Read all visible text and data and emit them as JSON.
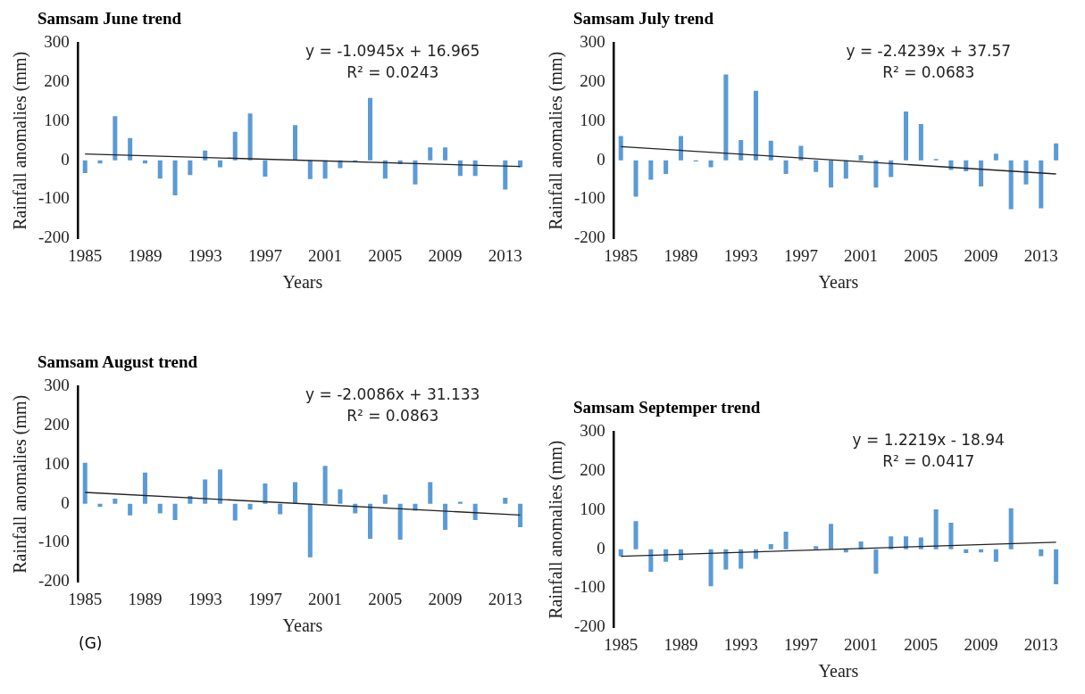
{
  "chart_data": [
    {
      "type": "bar",
      "title": "Samsam June trend",
      "xlabel": "Years",
      "ylabel": "Rainfall anomalies (mm)",
      "categories": [
        "1985",
        null,
        null,
        null,
        "1989",
        null,
        null,
        null,
        "1993",
        null,
        null,
        null,
        "1997",
        null,
        null,
        null,
        "2001",
        null,
        null,
        null,
        "2005",
        null,
        null,
        null,
        "2009",
        null,
        null,
        null,
        "2013",
        null
      ],
      "series": [
        {
          "color": "#5b9bd5",
          "values": [
            -33,
            -8,
            113,
            57,
            -8,
            -47,
            -90,
            -38,
            25,
            -18,
            73,
            120,
            -42,
            0,
            90,
            -48,
            -47,
            -20,
            -3,
            160,
            -47,
            -10,
            -62,
            33,
            33,
            -40,
            -40,
            0,
            -75,
            -18
          ]
        },
        {
          "type": "line",
          "color": "#222222",
          "values": [
            16,
            null,
            null,
            null,
            null,
            null,
            null,
            null,
            null,
            null,
            null,
            null,
            null,
            null,
            null,
            null,
            null,
            null,
            null,
            null,
            null,
            null,
            null,
            null,
            null,
            null,
            null,
            null,
            null,
            -16
          ]
        }
      ],
      "ylim": [
        -200,
        300
      ],
      "yticks": [
        -200,
        -100,
        0,
        100,
        200,
        300
      ],
      "grid": false,
      "legend": false,
      "annotations": [
        "y = -1.0945x + 16.965",
        "R² = 0.0243"
      ]
    },
    {
      "type": "bar",
      "title": "Samsam July trend",
      "xlabel": "Years",
      "ylabel": "Rainfall anomalies (mm)",
      "categories": [
        "1985",
        null,
        null,
        null,
        "1989",
        null,
        null,
        null,
        "1993",
        null,
        null,
        null,
        "1997",
        null,
        null,
        null,
        "2001",
        null,
        null,
        null,
        "2005",
        null,
        null,
        null,
        "2009",
        null,
        null,
        null,
        "2013",
        null
      ],
      "series": [
        {
          "color": "#5b9bd5",
          "values": [
            62,
            -93,
            -50,
            -35,
            62,
            -3,
            -18,
            220,
            52,
            178,
            50,
            -35,
            37,
            -30,
            -70,
            -47,
            13,
            -70,
            -43,
            125,
            93,
            3,
            -25,
            -28,
            -67,
            17,
            -125,
            -62,
            -123,
            43
          ]
        },
        {
          "type": "line",
          "color": "#222222",
          "values": [
            35,
            null,
            null,
            null,
            null,
            null,
            null,
            null,
            null,
            null,
            null,
            null,
            null,
            null,
            null,
            null,
            null,
            null,
            null,
            null,
            null,
            null,
            null,
            null,
            null,
            null,
            null,
            null,
            null,
            -35
          ]
        }
      ],
      "ylim": [
        -200,
        300
      ],
      "yticks": [
        -200,
        -100,
        0,
        100,
        200,
        300
      ],
      "grid": false,
      "legend": false,
      "annotations": [
        "y = -2.4239x + 37.57",
        "R² = 0.0683"
      ]
    },
    {
      "type": "bar",
      "title": "Samsam August trend",
      "xlabel": "Years",
      "ylabel": "Rainfall anomalies (mm)",
      "categories": [
        "1985",
        null,
        null,
        null,
        "1989",
        null,
        null,
        null,
        "1993",
        null,
        null,
        null,
        "1997",
        null,
        null,
        null,
        "2001",
        null,
        null,
        null,
        "2005",
        null,
        null,
        null,
        "2009",
        null,
        null,
        null,
        "2013",
        null
      ],
      "series": [
        {
          "color": "#5b9bd5",
          "values": [
            105,
            -8,
            13,
            -30,
            80,
            -25,
            -42,
            20,
            62,
            88,
            -43,
            -15,
            52,
            -27,
            55,
            -137,
            97,
            37,
            -25,
            -90,
            23,
            -92,
            -18,
            55,
            -67,
            5,
            -42,
            0,
            15,
            -60
          ]
        },
        {
          "type": "line",
          "color": "#222222",
          "values": [
            29,
            null,
            null,
            null,
            null,
            null,
            null,
            null,
            null,
            null,
            null,
            null,
            null,
            null,
            null,
            null,
            null,
            null,
            null,
            null,
            null,
            null,
            null,
            null,
            null,
            null,
            null,
            null,
            null,
            -29
          ]
        }
      ],
      "ylim": [
        -200,
        300
      ],
      "yticks": [
        -200,
        -100,
        0,
        100,
        200,
        300
      ],
      "grid": false,
      "legend": false,
      "annotations": [
        "y = -2.0086x + 31.133",
        "R² = 0.0863",
        "(G)"
      ]
    },
    {
      "type": "bar",
      "title": "Samsam Septemper trend",
      "xlabel": "Years",
      "ylabel": "Rainfall anomalies (mm)",
      "categories": [
        "1985",
        null,
        null,
        null,
        "1989",
        null,
        null,
        null,
        "1993",
        null,
        null,
        null,
        "1997",
        null,
        null,
        null,
        "2001",
        null,
        null,
        null,
        "2005",
        null,
        null,
        null,
        "2009",
        null,
        null,
        null,
        "2013",
        null
      ],
      "series": [
        {
          "color": "#5b9bd5",
          "values": [
            -18,
            72,
            -58,
            -32,
            -28,
            0,
            -95,
            -52,
            -50,
            -25,
            13,
            45,
            0,
            8,
            65,
            -8,
            20,
            -63,
            33,
            33,
            30,
            102,
            68,
            -10,
            -8,
            -32,
            105,
            0,
            -18,
            -90
          ]
        },
        {
          "type": "line",
          "color": "#222222",
          "values": [
            -18,
            null,
            null,
            null,
            null,
            null,
            null,
            null,
            null,
            null,
            null,
            null,
            null,
            null,
            null,
            null,
            null,
            null,
            null,
            null,
            null,
            null,
            null,
            null,
            null,
            null,
            null,
            null,
            null,
            18
          ]
        }
      ],
      "ylim": [
        -200,
        300
      ],
      "yticks": [
        -200,
        -100,
        0,
        100,
        200,
        300
      ],
      "grid": false,
      "legend": false,
      "annotations": [
        "y = 1.2219x - 18.94",
        "R² = 0.0417"
      ]
    }
  ]
}
